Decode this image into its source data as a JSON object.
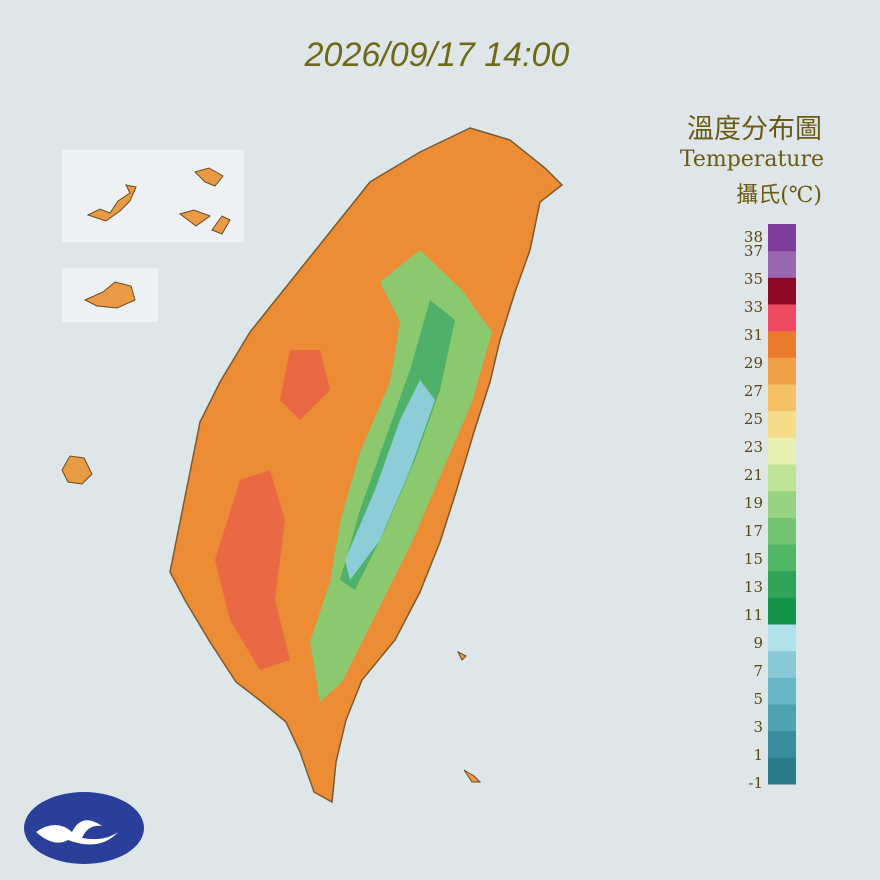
{
  "header": {
    "timestamp": "2026/09/17 14:00"
  },
  "legend": {
    "title": "溫度分布圖",
    "subtitle": "Temperature",
    "unit": "攝氏(℃)",
    "labels": [
      38,
      37,
      35,
      33,
      31,
      29,
      27,
      25,
      23,
      21,
      19,
      17,
      15,
      13,
      11,
      9,
      7,
      5,
      3,
      1,
      -1
    ],
    "band_colors": [
      "#2a7b8b",
      "#3a8d9e",
      "#4ea2b2",
      "#68b6c5",
      "#88c9d5",
      "#b0e2ea",
      "#13924a",
      "#30a457",
      "#50b565",
      "#72c472",
      "#97d383",
      "#bfe497",
      "#e8efb2",
      "#f6dc8a",
      "#f4c264",
      "#f0a048",
      "#eb7b2c",
      "#ee4a62",
      "#8c0a26",
      "#9a68b0",
      "#7e3c9c"
    ]
  }
}
